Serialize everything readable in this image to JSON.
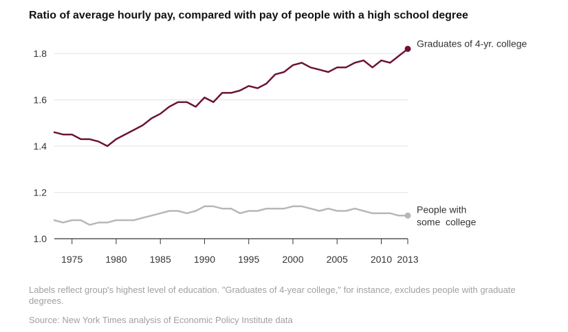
{
  "chart_data": {
    "type": "line",
    "title": "Ratio of average hourly pay, compared with pay of people with a high school degree",
    "xlabel": "",
    "ylabel": "",
    "xlim": [
      1973,
      2013
    ],
    "ylim": [
      1.0,
      1.85
    ],
    "x_ticks": [
      1975,
      1980,
      1985,
      1990,
      1995,
      2000,
      2005,
      2010,
      2013
    ],
    "x_tick_labels": [
      "1975",
      "1980",
      "1985",
      "1990",
      "1995",
      "2000",
      "2005",
      "2010",
      "2013"
    ],
    "y_ticks": [
      1.0,
      1.2,
      1.4,
      1.6,
      1.8
    ],
    "y_tick_labels": [
      "1.0",
      "1.2",
      "1.4",
      "1.6",
      "1.8"
    ],
    "grid": "horizontal",
    "x": [
      1973,
      1974,
      1975,
      1976,
      1977,
      1978,
      1979,
      1980,
      1981,
      1982,
      1983,
      1984,
      1985,
      1986,
      1987,
      1988,
      1989,
      1990,
      1991,
      1992,
      1993,
      1994,
      1995,
      1996,
      1997,
      1998,
      1999,
      2000,
      2001,
      2002,
      2003,
      2004,
      2005,
      2006,
      2007,
      2008,
      2009,
      2010,
      2011,
      2012,
      2013
    ],
    "series": [
      {
        "name": "Graduates of 4-yr. college",
        "color": "#6b1237",
        "values": [
          1.46,
          1.45,
          1.45,
          1.43,
          1.43,
          1.42,
          1.4,
          1.43,
          1.45,
          1.47,
          1.49,
          1.52,
          1.54,
          1.57,
          1.59,
          1.59,
          1.57,
          1.61,
          1.59,
          1.63,
          1.63,
          1.64,
          1.66,
          1.65,
          1.67,
          1.71,
          1.72,
          1.75,
          1.76,
          1.74,
          1.73,
          1.72,
          1.74,
          1.74,
          1.76,
          1.77,
          1.74,
          1.77,
          1.76,
          1.79,
          1.82
        ]
      },
      {
        "name": "People with some  college",
        "name_lines": [
          "People with",
          "some  college"
        ],
        "color": "#b9b6b6",
        "values": [
          1.08,
          1.07,
          1.08,
          1.08,
          1.06,
          1.07,
          1.07,
          1.08,
          1.08,
          1.08,
          1.09,
          1.1,
          1.11,
          1.12,
          1.12,
          1.11,
          1.12,
          1.14,
          1.14,
          1.13,
          1.13,
          1.11,
          1.12,
          1.12,
          1.13,
          1.13,
          1.13,
          1.14,
          1.14,
          1.13,
          1.12,
          1.13,
          1.12,
          1.12,
          1.13,
          1.12,
          1.11,
          1.11,
          1.11,
          1.1,
          1.1
        ]
      }
    ]
  },
  "note": "Labels reflect group's highest level of education. \"Graduates of 4-year college,\" for instance, excludes people with graduate degrees.",
  "source": "Source: New York Times analysis of Economic Policy Institute data"
}
